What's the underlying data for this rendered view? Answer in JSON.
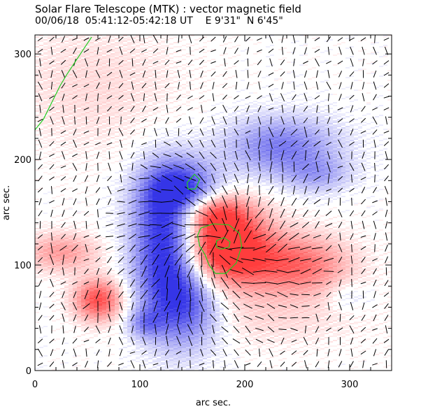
{
  "chart_data": {
    "type": "heatmap",
    "title": "Solar Flare Telescope (MTK) : vector magnetic field",
    "subtitle": "00/06/18  05:41:12-05:42:18 UT    E 9'31\"  N 6'45\"",
    "xlabel": "arc sec.",
    "ylabel": "arc sec.",
    "xlim": [
      0,
      340
    ],
    "ylim": [
      0,
      318
    ],
    "x_ticks": [
      0,
      100,
      200,
      300
    ],
    "y_ticks": [
      0,
      100,
      200,
      300
    ],
    "x_minor_step": 20,
    "y_minor_step": 20,
    "colors": {
      "positive": "#ff3333",
      "negative": "#2a2ae6",
      "contour": "#22cc22",
      "vectors": "#000000"
    },
    "blobs": [
      {
        "x": 180,
        "y": 118,
        "sx": 30,
        "sy": 26,
        "w": 1.35,
        "label": "positive core"
      },
      {
        "x": 165,
        "y": 150,
        "sx": 25,
        "sy": 12,
        "w": 0.65,
        "label": "positive arc"
      },
      {
        "x": 250,
        "y": 100,
        "sx": 35,
        "sy": 20,
        "w": 0.75,
        "label": "positive east"
      },
      {
        "x": 60,
        "y": 67,
        "sx": 16,
        "sy": 14,
        "w": 0.9,
        "label": "positive small"
      },
      {
        "x": 25,
        "y": 112,
        "sx": 25,
        "sy": 13,
        "w": 0.5,
        "label": "positive west"
      },
      {
        "x": 55,
        "y": 270,
        "sx": 60,
        "sy": 45,
        "w": 0.18,
        "label": "weak positive"
      },
      {
        "x": 215,
        "y": 50,
        "sx": 70,
        "sy": 20,
        "w": 0.18,
        "label": "weak positive south"
      },
      {
        "x": 125,
        "y": 120,
        "sx": 22,
        "sy": 45,
        "w": -1.15,
        "label": "negative main"
      },
      {
        "x": 140,
        "y": 170,
        "sx": 25,
        "sy": 20,
        "w": -0.85,
        "label": "negative north"
      },
      {
        "x": 145,
        "y": 60,
        "sx": 25,
        "sy": 28,
        "w": -0.75,
        "label": "negative south"
      },
      {
        "x": 105,
        "y": 45,
        "sx": 12,
        "sy": 10,
        "w": -0.45,
        "label": "negative patch"
      },
      {
        "x": 235,
        "y": 212,
        "sx": 38,
        "sy": 20,
        "w": -0.65,
        "label": "negative northeast"
      },
      {
        "x": 270,
        "y": 185,
        "sx": 22,
        "sy": 12,
        "w": -0.35,
        "label": "negative east"
      },
      {
        "x": 300,
        "y": 70,
        "sx": 15,
        "sy": 10,
        "w": -0.2,
        "label": "weak negative"
      }
    ],
    "contours": [
      {
        "name": "contour-high",
        "points": [
          [
            177,
            115
          ],
          [
            185,
            117
          ],
          [
            186,
            122
          ],
          [
            180,
            126
          ],
          [
            173,
            123
          ],
          [
            173,
            117
          ],
          [
            177,
            115
          ]
        ]
      },
      {
        "name": "contour-core",
        "points": [
          [
            158,
            135
          ],
          [
            170,
            139
          ],
          [
            185,
            138
          ],
          [
            195,
            130
          ],
          [
            197,
            118
          ],
          [
            192,
            102
          ],
          [
            182,
            92
          ],
          [
            172,
            92
          ],
          [
            166,
            100
          ],
          [
            162,
            110
          ],
          [
            157,
            118
          ],
          [
            155,
            128
          ],
          [
            158,
            135
          ]
        ]
      },
      {
        "name": "contour-north",
        "points": [
          [
            145,
            178
          ],
          [
            152,
            186
          ],
          [
            157,
            181
          ],
          [
            153,
            172
          ],
          [
            146,
            172
          ],
          [
            145,
            178
          ]
        ]
      },
      {
        "name": "contour-limb",
        "points": [
          [
            0,
            228
          ],
          [
            8,
            238
          ],
          [
            12,
            246
          ],
          [
            18,
            258
          ],
          [
            24,
            270
          ],
          [
            30,
            280
          ],
          [
            38,
            292
          ],
          [
            46,
            304
          ],
          [
            54,
            316
          ]
        ]
      }
    ]
  }
}
